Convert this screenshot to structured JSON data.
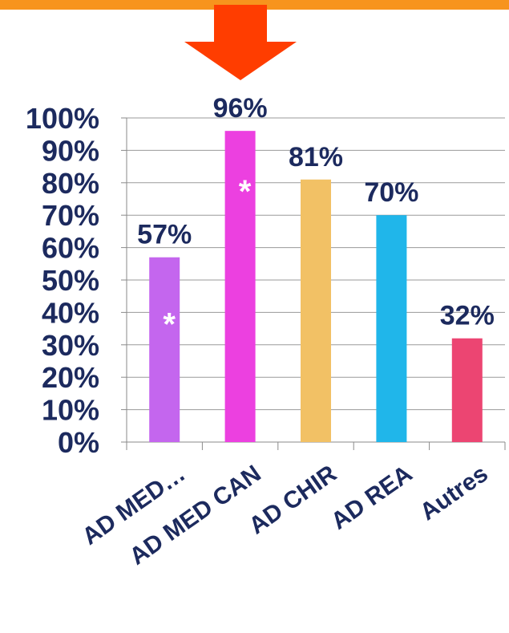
{
  "colors": {
    "top_bar": "#f7941d",
    "arrow": "#ff3d00",
    "label_text": "#1c2a5e",
    "asterisk": "#ffffff"
  },
  "chart_data": {
    "type": "bar",
    "categories": [
      "AD MED…",
      "AD MED CAN",
      "AD CHIR",
      "AD REA",
      "Autres"
    ],
    "values": [
      57,
      96,
      81,
      70,
      32
    ],
    "value_labels": [
      "57%",
      "96%",
      "81%",
      "70%",
      "32%"
    ],
    "bar_colors": [
      "#c466ee",
      "#ec40e0",
      "#f2c165",
      "#20b6ea",
      "#ec4572"
    ],
    "asterisks": [
      "*",
      "*",
      "",
      "",
      ""
    ],
    "ylim": [
      0,
      100
    ],
    "yticks": [
      0,
      10,
      20,
      30,
      40,
      50,
      60,
      70,
      80,
      90,
      100
    ],
    "ytick_labels": [
      "0%",
      "10%",
      "20%",
      "30%",
      "40%",
      "50%",
      "60%",
      "70%",
      "80%",
      "90%",
      "100%"
    ],
    "grid": true,
    "xlabel": "",
    "ylabel": "",
    "title": ""
  }
}
